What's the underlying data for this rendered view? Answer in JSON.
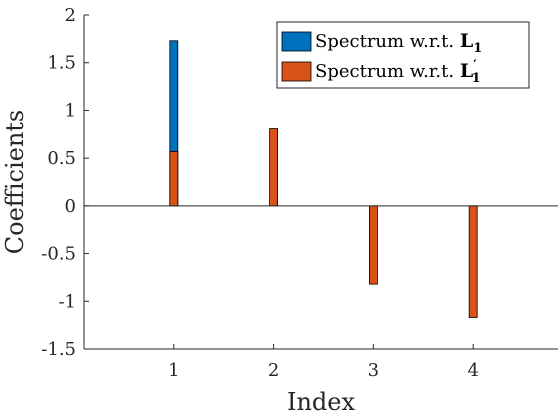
{
  "chart_data": {
    "type": "bar",
    "xlabel": "Index",
    "ylabel": "Coefficients",
    "x": [
      1,
      2,
      3,
      4
    ],
    "xlim": [
      0.1,
      4.85
    ],
    "ylim": [
      -1.5,
      2
    ],
    "xticks": [
      "1",
      "2",
      "3",
      "4"
    ],
    "yticks": [
      "-1.5",
      "-1",
      "-0.5",
      "0",
      "0.5",
      "1",
      "1.5",
      "2"
    ],
    "grid": false,
    "legend_position": "top-right",
    "series": [
      {
        "name_text": "Spectrum w.r.t. ",
        "name_symbol": "L",
        "name_subscript": "1",
        "name_prime": "",
        "color": "#0072BD",
        "values": [
          1.73,
          0,
          0,
          0
        ]
      },
      {
        "name_text": "Spectrum w.r.t. ",
        "name_symbol": "L",
        "name_subscript": "1",
        "name_prime": "′",
        "color": "#D95319",
        "values": [
          0.57,
          0.81,
          -0.82,
          -1.17
        ]
      }
    ]
  }
}
